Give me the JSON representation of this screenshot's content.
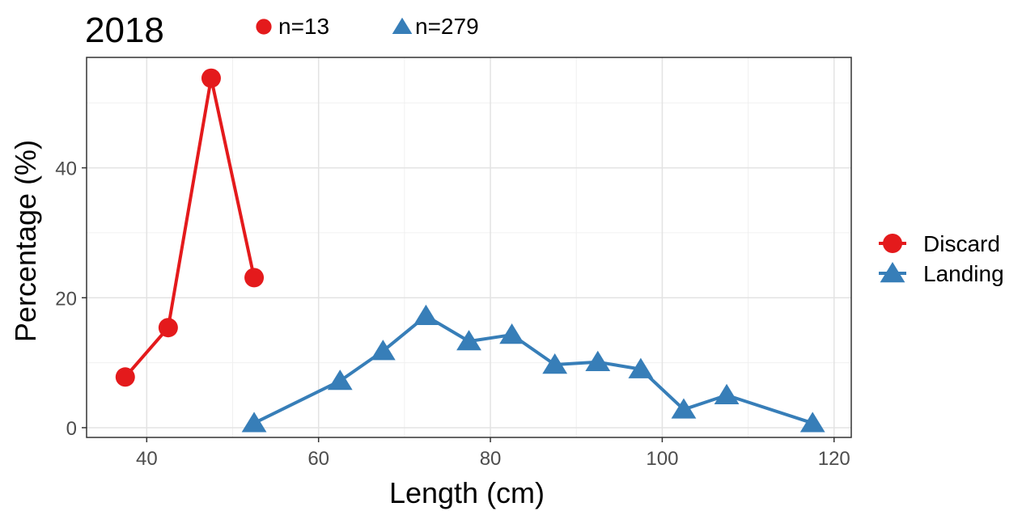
{
  "chart_data": {
    "type": "line",
    "title": "2018",
    "xlabel": "Length (cm)",
    "ylabel": "Percentage (%)",
    "xlim": [
      33,
      122
    ],
    "ylim": [
      -1.5,
      57
    ],
    "x_ticks": [
      40,
      60,
      80,
      100,
      120
    ],
    "y_ticks": [
      0,
      20,
      40
    ],
    "grid": true,
    "legend_position": "right",
    "sample_sizes": [
      {
        "series": "Discard",
        "label": "n=13"
      },
      {
        "series": "Landing",
        "label": "n=279"
      }
    ],
    "series": [
      {
        "name": "Discard",
        "color": "#e41a1c",
        "marker": "circle",
        "x": [
          37.5,
          42.5,
          47.5,
          52.5
        ],
        "y": [
          7.8,
          15.4,
          53.8,
          23.1
        ]
      },
      {
        "name": "Landing",
        "color": "#377eb8",
        "marker": "triangle",
        "x": [
          52.5,
          62.5,
          67.5,
          72.5,
          77.5,
          82.5,
          87.5,
          92.5,
          97.5,
          102.5,
          107.5,
          117.5
        ],
        "y": [
          0.7,
          7.2,
          11.8,
          17.2,
          13.3,
          14.3,
          9.7,
          10.1,
          9.0,
          2.8,
          5.0,
          0.7
        ]
      }
    ]
  }
}
